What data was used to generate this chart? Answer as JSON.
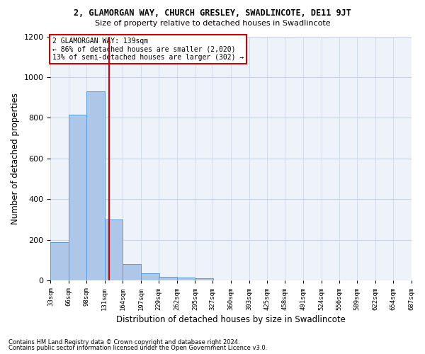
{
  "title_line1": "2, GLAMORGAN WAY, CHURCH GRESLEY, SWADLINCOTE, DE11 9JT",
  "title_line2": "Size of property relative to detached houses in Swadlincote",
  "xlabel": "Distribution of detached houses by size in Swadlincote",
  "ylabel": "Number of detached properties",
  "annotation_line1": "2 GLAMORGAN WAY: 139sqm",
  "annotation_line2": "← 86% of detached houses are smaller (2,020)",
  "annotation_line3": "13% of semi-detached houses are larger (302) →",
  "property_size": 139,
  "bin_edges": [
    33,
    66,
    98,
    131,
    164,
    197,
    229,
    262,
    295,
    327,
    360,
    393,
    425,
    458,
    491,
    524,
    556,
    589,
    622,
    654,
    687
  ],
  "bar_heights": [
    190,
    815,
    930,
    300,
    80,
    35,
    20,
    15,
    10,
    0,
    0,
    0,
    0,
    0,
    0,
    0,
    0,
    0,
    0,
    0
  ],
  "bar_color": "#aec6e8",
  "bar_edge_color": "#5b9bd5",
  "red_line_color": "#cc0000",
  "annotation_box_color": "#ffffff",
  "annotation_box_edge": "#cc0000",
  "background_color": "#eef2f9",
  "grid_color": "#c8d4e8",
  "ylim": [
    0,
    1200
  ],
  "yticks": [
    0,
    200,
    400,
    600,
    800,
    1000,
    1200
  ],
  "footer_line1": "Contains HM Land Registry data © Crown copyright and database right 2024.",
  "footer_line2": "Contains public sector information licensed under the Open Government Licence v3.0."
}
